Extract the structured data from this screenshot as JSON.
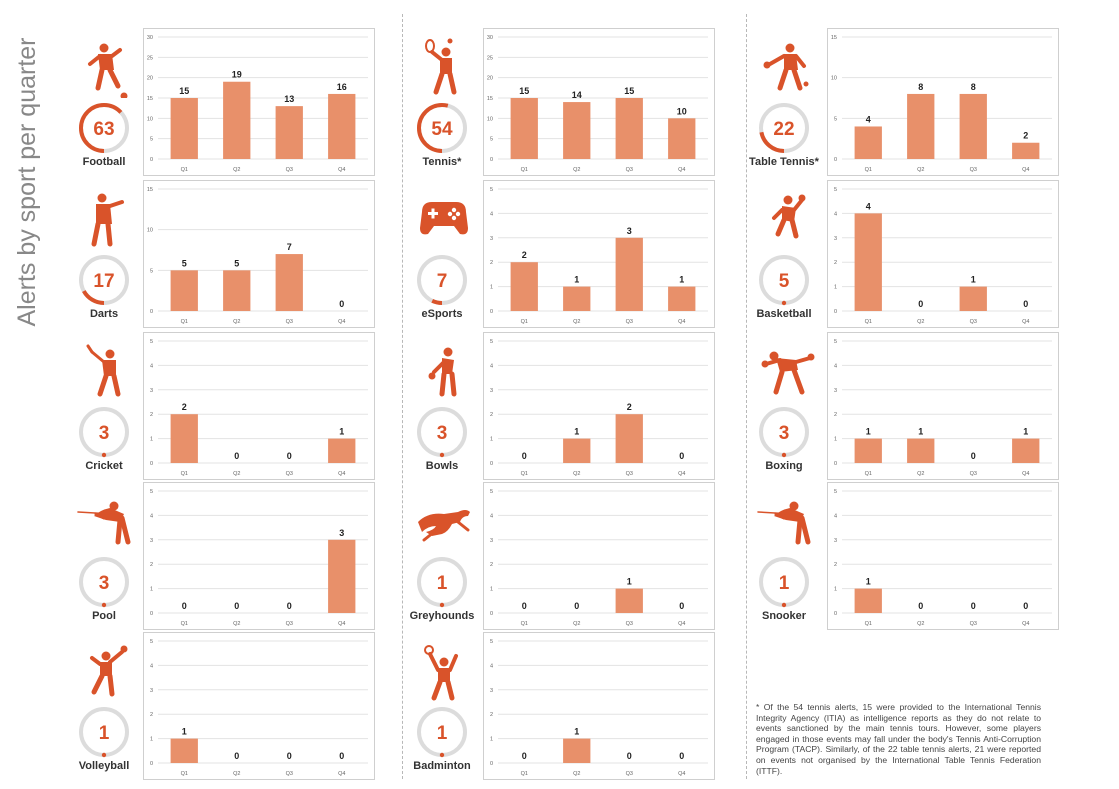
{
  "title": "Alerts by sport per quarter",
  "accent_color": "#d9532a",
  "bar_color": "#e8906a",
  "gauge_track_color": "#dcdcdc",
  "footnote": "* Of the 54 tennis alerts, 15 were provided to the International Tennis Integrity Agency (ITIA) as intelligence reports as they do not relate to events sanctioned by the main tennis tours. However, some players engaged in those events may fall under the body's Tennis Anti-Corruption Program (TACP). Similarly, of the 22 table tennis alerts, 21 were reported on events not organised by the International Table Tennis Federation (ITTF).",
  "chart_data": [
    {
      "type": "bar",
      "sport": "Football",
      "total": "63",
      "icon": "football-player-icon",
      "categories": [
        "Q1",
        "Q2",
        "Q3",
        "Q4"
      ],
      "values": [
        15,
        19,
        13,
        16
      ],
      "ylim": [
        0,
        30
      ],
      "yticks": [
        0,
        5,
        10,
        15,
        20,
        25,
        30
      ]
    },
    {
      "type": "bar",
      "sport": "Tennis*",
      "total": "54",
      "icon": "tennis-player-icon",
      "categories": [
        "Q1",
        "Q2",
        "Q3",
        "Q4"
      ],
      "values": [
        15,
        14,
        15,
        10
      ],
      "ylim": [
        0,
        30
      ],
      "yticks": [
        0,
        5,
        10,
        15,
        20,
        25,
        30
      ]
    },
    {
      "type": "bar",
      "sport": "Table Tennis*",
      "total": "22",
      "icon": "table-tennis-player-icon",
      "categories": [
        "Q1",
        "Q2",
        "Q3",
        "Q4"
      ],
      "values": [
        4,
        8,
        8,
        2
      ],
      "ylim": [
        0,
        15
      ],
      "yticks": [
        0,
        5,
        10,
        15
      ]
    },
    {
      "type": "bar",
      "sport": "Darts",
      "total": "17",
      "icon": "darts-player-icon",
      "categories": [
        "Q1",
        "Q2",
        "Q3",
        "Q4"
      ],
      "values": [
        5,
        5,
        7,
        0
      ],
      "ylim": [
        0,
        15
      ],
      "yticks": [
        0,
        5,
        10,
        15
      ]
    },
    {
      "type": "bar",
      "sport": "eSports",
      "total": "7",
      "icon": "game-controller-icon",
      "categories": [
        "Q1",
        "Q2",
        "Q3",
        "Q4"
      ],
      "values": [
        2,
        1,
        3,
        1
      ],
      "ylim": [
        0,
        5
      ],
      "yticks": [
        0,
        1,
        2,
        3,
        4,
        5
      ]
    },
    {
      "type": "bar",
      "sport": "Basketball",
      "total": "5",
      "icon": "basketball-player-icon",
      "categories": [
        "Q1",
        "Q2",
        "Q3",
        "Q4"
      ],
      "values": [
        4,
        0,
        1,
        0
      ],
      "ylim": [
        0,
        5
      ],
      "yticks": [
        0,
        1,
        2,
        3,
        4,
        5
      ]
    },
    {
      "type": "bar",
      "sport": "Cricket",
      "total": "3",
      "icon": "cricket-player-icon",
      "categories": [
        "Q1",
        "Q2",
        "Q3",
        "Q4"
      ],
      "values": [
        2,
        0,
        0,
        1
      ],
      "ylim": [
        0,
        5
      ],
      "yticks": [
        0,
        1,
        2,
        3,
        4,
        5
      ]
    },
    {
      "type": "bar",
      "sport": "Bowls",
      "total": "3",
      "icon": "bowls-player-icon",
      "categories": [
        "Q1",
        "Q2",
        "Q3",
        "Q4"
      ],
      "values": [
        0,
        1,
        2,
        0
      ],
      "ylim": [
        0,
        5
      ],
      "yticks": [
        0,
        1,
        2,
        3,
        4,
        5
      ]
    },
    {
      "type": "bar",
      "sport": "Boxing",
      "total": "3",
      "icon": "boxer-icon",
      "categories": [
        "Q1",
        "Q2",
        "Q3",
        "Q4"
      ],
      "values": [
        1,
        1,
        0,
        1
      ],
      "ylim": [
        0,
        5
      ],
      "yticks": [
        0,
        1,
        2,
        3,
        4,
        5
      ]
    },
    {
      "type": "bar",
      "sport": "Pool",
      "total": "3",
      "icon": "pool-player-icon",
      "categories": [
        "Q1",
        "Q2",
        "Q3",
        "Q4"
      ],
      "values": [
        0,
        0,
        0,
        3
      ],
      "ylim": [
        0,
        5
      ],
      "yticks": [
        0,
        1,
        2,
        3,
        4,
        5
      ]
    },
    {
      "type": "bar",
      "sport": "Greyhounds",
      "total": "1",
      "icon": "greyhound-icon",
      "categories": [
        "Q1",
        "Q2",
        "Q3",
        "Q4"
      ],
      "values": [
        0,
        0,
        1,
        0
      ],
      "ylim": [
        0,
        5
      ],
      "yticks": [
        0,
        1,
        2,
        3,
        4,
        5
      ]
    },
    {
      "type": "bar",
      "sport": "Snooker",
      "total": "1",
      "icon": "snooker-player-icon",
      "categories": [
        "Q1",
        "Q2",
        "Q3",
        "Q4"
      ],
      "values": [
        1,
        0,
        0,
        0
      ],
      "ylim": [
        0,
        5
      ],
      "yticks": [
        0,
        1,
        2,
        3,
        4,
        5
      ]
    },
    {
      "type": "bar",
      "sport": "Volleyball",
      "total": "1",
      "icon": "volleyball-player-icon",
      "categories": [
        "Q1",
        "Q2",
        "Q3",
        "Q4"
      ],
      "values": [
        1,
        0,
        0,
        0
      ],
      "ylim": [
        0,
        5
      ],
      "yticks": [
        0,
        1,
        2,
        3,
        4,
        5
      ]
    },
    {
      "type": "bar",
      "sport": "Badminton",
      "total": "1",
      "icon": "badminton-player-icon",
      "categories": [
        "Q1",
        "Q2",
        "Q3",
        "Q4"
      ],
      "values": [
        0,
        1,
        0,
        0
      ],
      "ylim": [
        0,
        5
      ],
      "yticks": [
        0,
        1,
        2,
        3,
        4,
        5
      ]
    }
  ]
}
